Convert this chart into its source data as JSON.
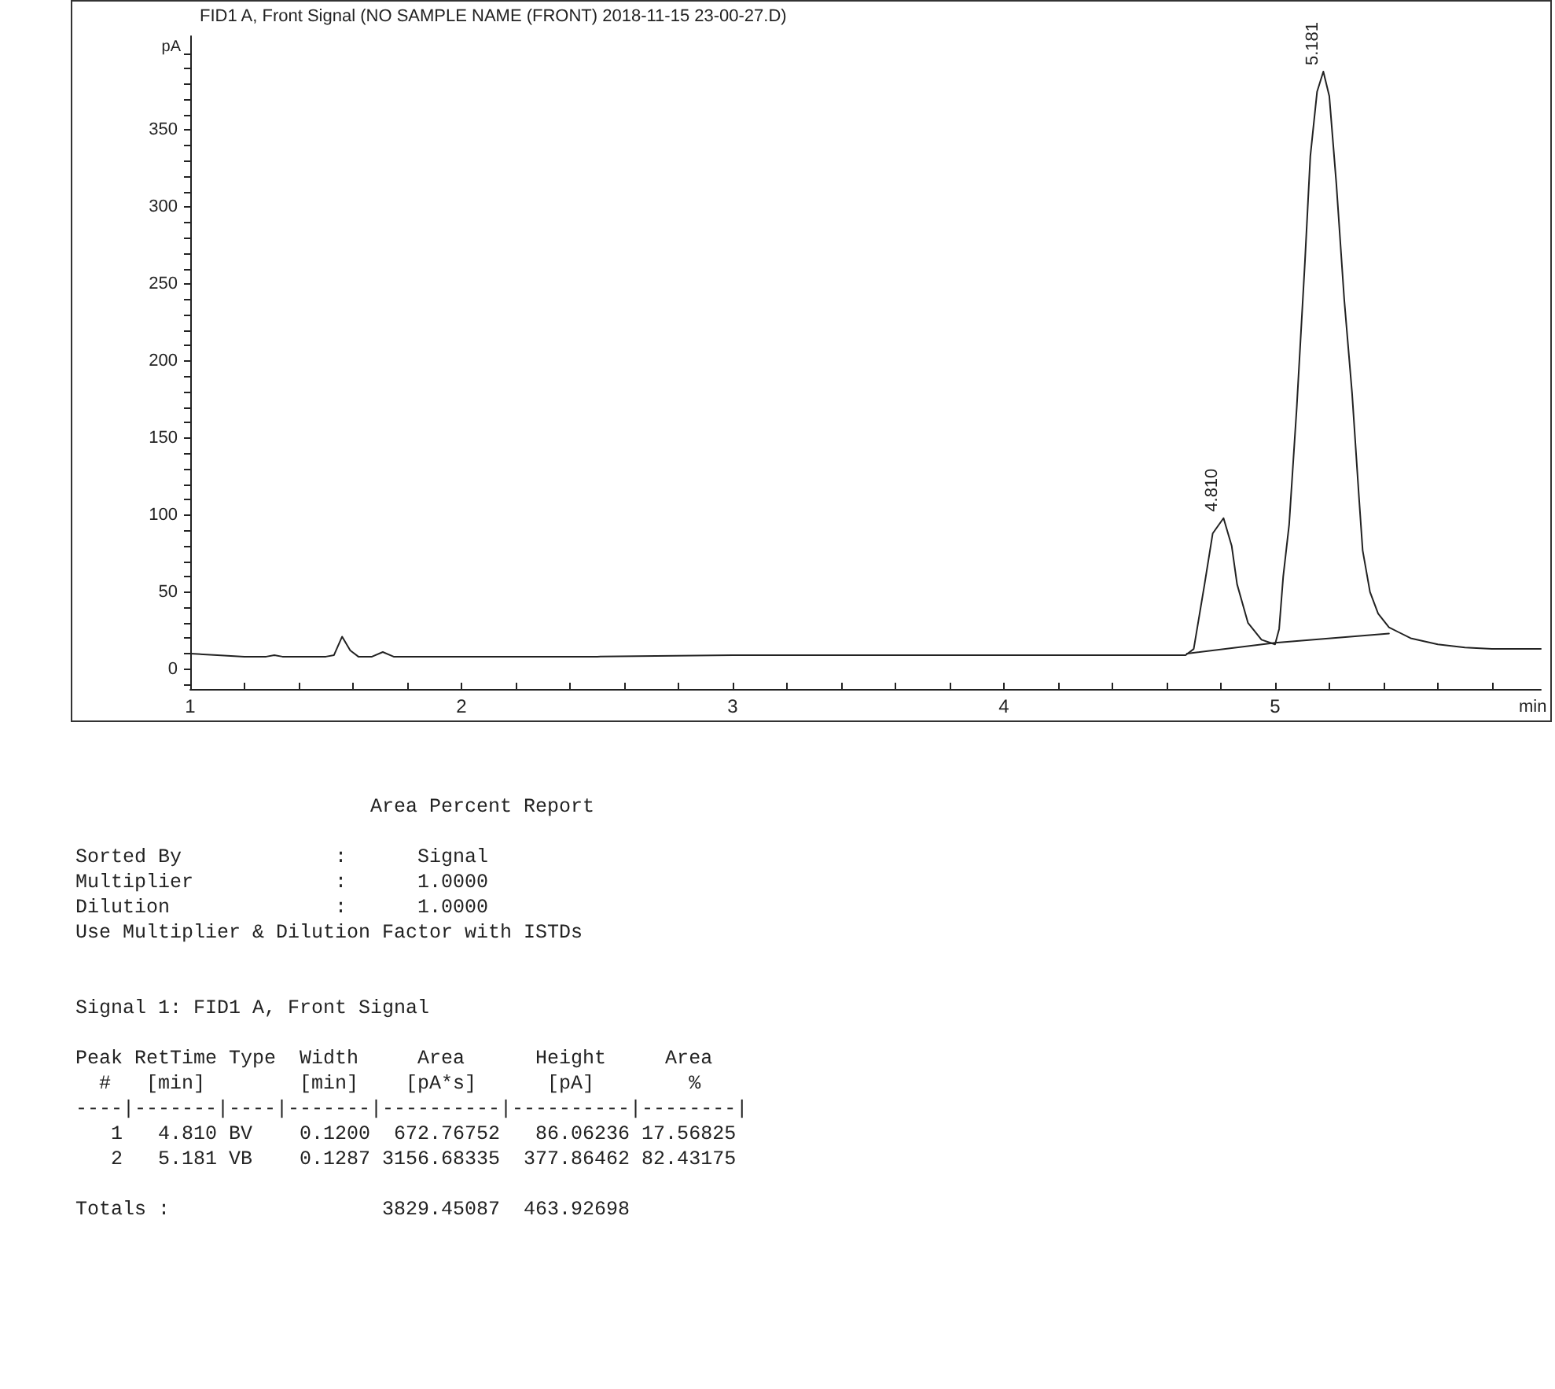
{
  "chart_data": {
    "type": "line",
    "title": "FID1 A, Front Signal (NO SAMPLE NAME (FRONT) 2018-11-15 23-00-27.D)",
    "xlabel": "min",
    "ylabel": "pA",
    "xlim": [
      1,
      5.98
    ],
    "ylim": [
      -13,
      411
    ],
    "xticks": [
      1,
      {
        "value": 1.2,
        "label": null
      },
      {
        "value": 1.4,
        "label": null
      },
      {
        "value": 1.6,
        "label": null
      },
      {
        "value": 1.8,
        "label": null
      },
      2,
      {
        "value": 2.2,
        "label": null
      },
      {
        "value": 2.4,
        "label": null
      },
      {
        "value": 2.6,
        "label": null
      },
      {
        "value": 2.8,
        "label": null
      },
      3,
      {
        "value": 3.2,
        "label": null
      },
      {
        "value": 3.4,
        "label": null
      },
      {
        "value": 3.6,
        "label": null
      },
      {
        "value": 3.8,
        "label": null
      },
      4,
      {
        "value": 4.2,
        "label": null
      },
      {
        "value": 4.4,
        "label": null
      },
      {
        "value": 4.6,
        "label": null
      },
      {
        "value": 4.8,
        "label": null
      },
      5,
      {
        "value": 5.2,
        "label": null
      },
      {
        "value": 5.4,
        "label": null
      },
      {
        "value": 5.6,
        "label": null
      },
      {
        "value": 5.8,
        "label": null
      }
    ],
    "yticks": [
      {
        "value": -10,
        "label": null
      },
      0,
      {
        "value": 10,
        "label": null
      },
      {
        "value": 20,
        "label": null
      },
      {
        "value": 30,
        "label": null
      },
      {
        "value": 40,
        "label": null
      },
      50,
      {
        "value": 60,
        "label": null
      },
      {
        "value": 70,
        "label": null
      },
      {
        "value": 80,
        "label": null
      },
      {
        "value": 90,
        "label": null
      },
      100,
      {
        "value": 110,
        "label": null
      },
      {
        "value": 120,
        "label": null
      },
      {
        "value": 130,
        "label": null
      },
      {
        "value": 140,
        "label": null
      },
      150,
      {
        "value": 160,
        "label": null
      },
      {
        "value": 170,
        "label": null
      },
      {
        "value": 180,
        "label": null
      },
      {
        "value": 190,
        "label": null
      },
      200,
      {
        "value": 210,
        "label": null
      },
      {
        "value": 220,
        "label": null
      },
      {
        "value": 230,
        "label": null
      },
      {
        "value": 240,
        "label": null
      },
      250,
      {
        "value": 260,
        "label": null
      },
      {
        "value": 270,
        "label": null
      },
      {
        "value": 280,
        "label": null
      },
      {
        "value": 290,
        "label": null
      },
      300,
      {
        "value": 310,
        "label": null
      },
      {
        "value": 320,
        "label": null
      },
      {
        "value": 330,
        "label": null
      },
      {
        "value": 340,
        "label": null
      },
      350,
      {
        "value": 360,
        "label": null
      },
      {
        "value": 370,
        "label": null
      },
      {
        "value": 380,
        "label": null
      },
      {
        "value": 390,
        "label": null
      },
      {
        "value": 400,
        "label": null
      }
    ],
    "grid": false,
    "marker": "none",
    "line_style": "solid",
    "series": [
      {
        "color": "#222222",
        "x": [
          1.0,
          1.1,
          1.2,
          1.28,
          1.31,
          1.34,
          1.5,
          1.53,
          1.56,
          1.59,
          1.62,
          1.67,
          1.71,
          1.75,
          1.8,
          2.5,
          3.0,
          3.5,
          4.0,
          4.5,
          4.67,
          4.7,
          4.74,
          4.77,
          4.81,
          4.84,
          4.86,
          4.9,
          4.95,
          5.0,
          5.015,
          5.03,
          5.052,
          5.08,
          5.11,
          5.13,
          5.155,
          5.178,
          5.2,
          5.226,
          5.255,
          5.284,
          5.31,
          5.323,
          5.35,
          5.38,
          5.42,
          5.5,
          5.6,
          5.7,
          5.8,
          5.98
        ],
        "values": [
          10,
          9,
          8,
          8,
          9,
          8,
          8,
          9,
          21,
          12,
          8,
          8,
          11,
          8,
          8,
          8,
          9,
          9,
          9,
          9,
          9,
          13,
          55,
          88,
          98,
          80,
          55,
          30,
          19,
          16,
          26,
          60,
          94,
          170,
          264,
          333,
          375,
          388,
          372,
          315,
          240,
          179,
          110,
          77,
          50,
          36,
          27,
          20,
          16,
          14,
          13,
          13
        ]
      },
      {
        "color": "#222222",
        "x": [
          4.675,
          5.0,
          5.42
        ],
        "values": [
          10,
          17,
          23
        ]
      }
    ],
    "annotations": [
      {
        "text": "4.810",
        "x": 4.81,
        "y": 98
      },
      {
        "text": "5.181",
        "x": 5.181,
        "y": 388
      },
      "Area Percent Report",
      "Sorted By             :      Signal",
      "Multiplier            :      1.0000",
      "Dilution              :      1.0000",
      "Use Multiplier & Dilution Factor with ISTDs",
      "Signal 1: FID1 A, Front Signal",
      "Peak RetTime Type  Width     Area      Height     Area",
      "  #   [min]        [min]    [pA*s]      [pA]        %",
      "----|-------|----|-------|----------|----------|--------|",
      "   1   4.810 BV    0.1200  672.76752   86.06236 17.56825",
      "   2   5.181 VB    0.1287 3156.68335  377.86462 82.43175",
      "Totals :                  3829.45087  463.92698"
    ]
  }
}
